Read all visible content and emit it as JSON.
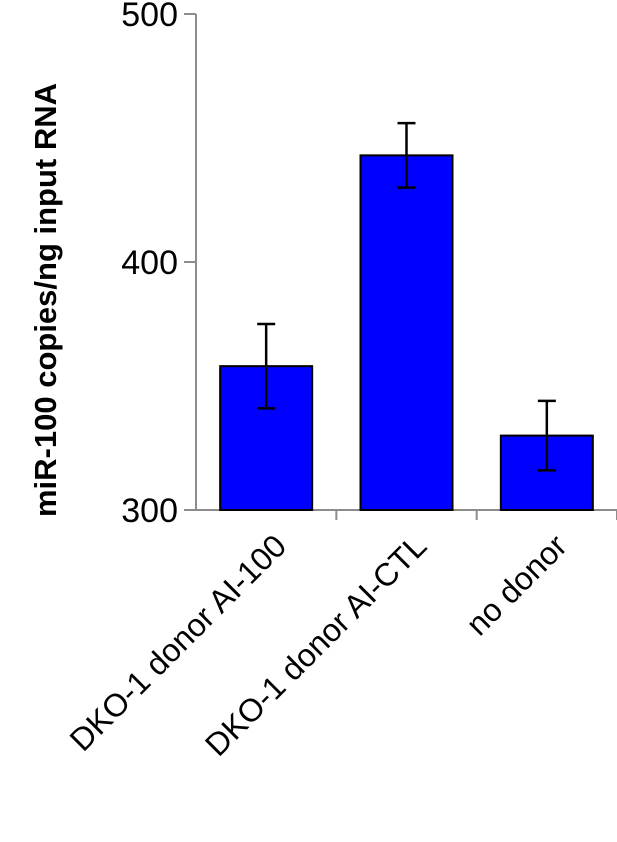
{
  "chart_data": {
    "type": "bar",
    "title": "",
    "xlabel": "",
    "ylabel": "miR-100 copies/ng input RNA",
    "ylim": [
      300,
      500
    ],
    "yticks": [
      300,
      400,
      500
    ],
    "categories": [
      "DKO-1 donor AI-100",
      "DKO-1 donor AI-CTL",
      "no donor"
    ],
    "values": [
      358,
      443,
      330
    ],
    "errors": [
      17,
      13,
      14
    ],
    "grid": false,
    "legend": "none",
    "colors": {
      "bar": "#0000FF",
      "bar_edge": "#000000",
      "axis": "#8c8c8c"
    }
  }
}
